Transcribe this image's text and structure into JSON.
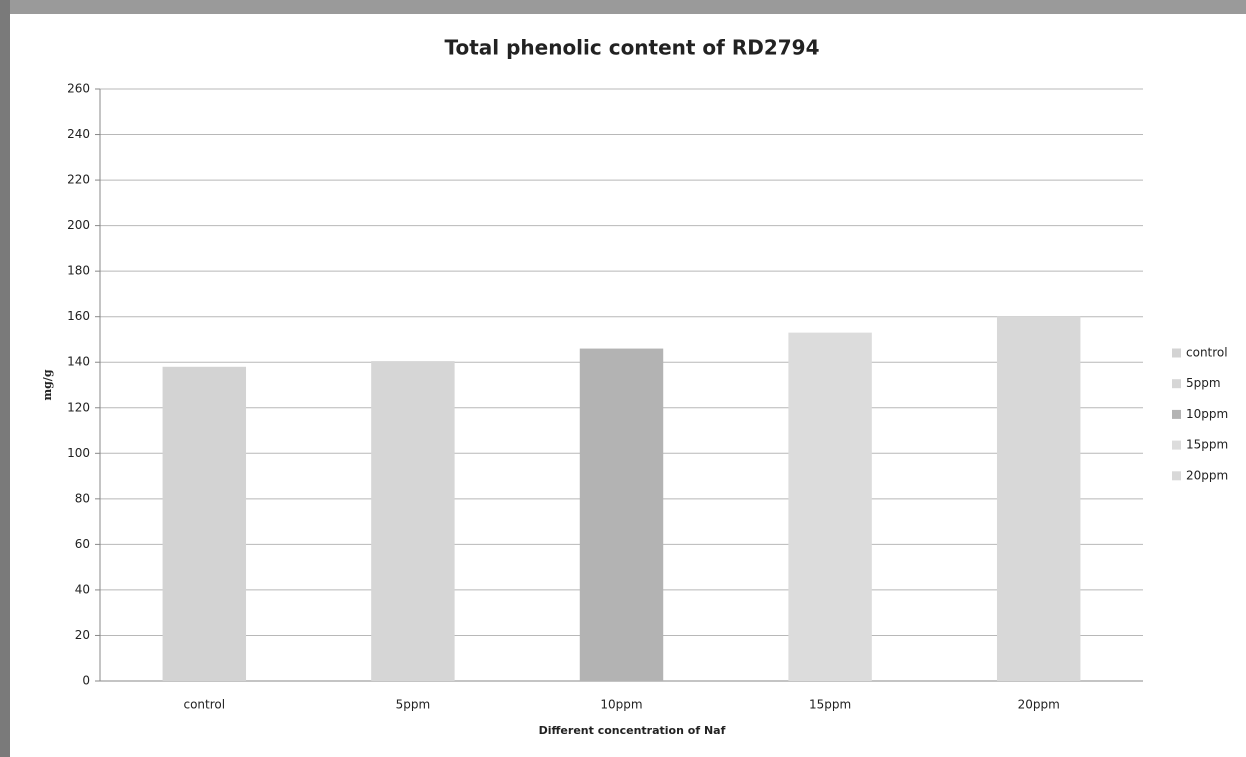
{
  "chart_data": {
    "type": "bar",
    "title": "Total phenolic content of RD2794",
    "x_label": "Different concentration  of Naf",
    "y_label": "mg/g",
    "categories": [
      "control",
      "5ppm",
      "10ppm",
      "15ppm",
      "20ppm"
    ],
    "values": [
      138,
      140.5,
      146,
      153,
      160
    ],
    "colors": [
      "#d3d3d3",
      "#d6d6d6",
      "#b3b3b3",
      "#dcdcdc",
      "#d8d8d8"
    ],
    "ylim": [
      0,
      260
    ],
    "yticks": [
      0,
      20,
      40,
      60,
      80,
      100,
      120,
      140,
      160,
      180,
      200,
      220,
      240,
      260
    ],
    "grid": true,
    "legend": "right"
  }
}
